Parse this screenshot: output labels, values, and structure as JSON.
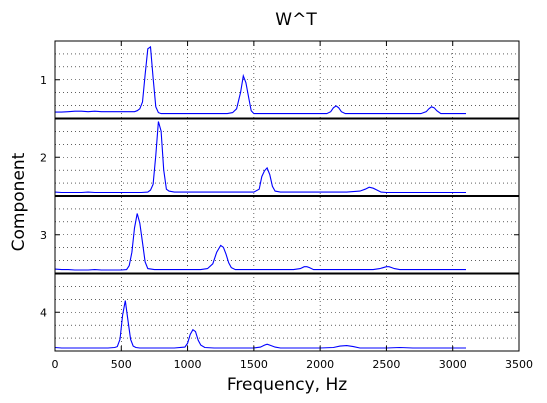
{
  "chart_data": {
    "type": "line",
    "title": "W^T",
    "xlabel": "Frequency, Hz",
    "ylabel": "Component",
    "xlim": [
      0,
      3500
    ],
    "xticks": [
      0,
      500,
      1000,
      1500,
      2000,
      2500,
      3000,
      3500
    ],
    "ylim": [
      4.5,
      0.5
    ],
    "yticks": [
      1,
      2,
      3,
      4
    ],
    "grid": true,
    "line_color": "#0000ff",
    "series": [
      {
        "x": [
          0,
          50,
          100,
          150,
          200,
          250,
          300,
          350,
          400,
          450,
          500,
          550,
          600,
          620,
          640,
          660,
          680,
          700,
          720,
          740,
          760,
          780,
          800,
          850,
          900,
          1000,
          1100,
          1200,
          1300,
          1340,
          1370,
          1400,
          1420,
          1440,
          1460,
          1480,
          1500,
          1550,
          1600,
          1700,
          1800,
          1900,
          2000,
          2050,
          2080,
          2100,
          2120,
          2140,
          2160,
          2190,
          2220,
          2300,
          2400,
          2500,
          2600,
          2700,
          2760,
          2800,
          2820,
          2840,
          2860,
          2880,
          2910,
          2950,
          3000,
          3050,
          3100
        ],
        "y": [
          0.45,
          0.45,
          0.5,
          0.55,
          0.55,
          0.5,
          0.55,
          0.5,
          0.5,
          0.5,
          0.5,
          0.5,
          0.5,
          0.6,
          0.8,
          1.5,
          4.3,
          7.0,
          7.2,
          4.0,
          1.0,
          0.4,
          0.3,
          0.3,
          0.3,
          0.3,
          0.3,
          0.3,
          0.3,
          0.4,
          0.8,
          2.5,
          4.2,
          3.5,
          2.0,
          0.6,
          0.3,
          0.3,
          0.3,
          0.3,
          0.3,
          0.3,
          0.3,
          0.3,
          0.5,
          0.9,
          1.1,
          0.9,
          0.5,
          0.3,
          0.3,
          0.3,
          0.3,
          0.3,
          0.3,
          0.3,
          0.3,
          0.5,
          0.8,
          1.0,
          0.9,
          0.6,
          0.3,
          0.3,
          0.3,
          0.3,
          0.3
        ]
      },
      {
        "x": [
          0,
          50,
          100,
          150,
          200,
          250,
          300,
          350,
          400,
          450,
          500,
          550,
          600,
          650,
          700,
          720,
          740,
          760,
          780,
          800,
          820,
          840,
          860,
          900,
          1000,
          1100,
          1200,
          1300,
          1400,
          1500,
          1540,
          1560,
          1580,
          1600,
          1620,
          1640,
          1660,
          1700,
          1800,
          1900,
          2000,
          2100,
          2200,
          2300,
          2340,
          2370,
          2400,
          2430,
          2460,
          2500,
          2600,
          2700,
          2800,
          2900,
          3000,
          3100
        ],
        "y": [
          0.2,
          0.15,
          0.15,
          0.15,
          0.15,
          0.2,
          0.15,
          0.15,
          0.15,
          0.15,
          0.15,
          0.15,
          0.15,
          0.15,
          0.2,
          0.4,
          1.0,
          4.0,
          7.5,
          6.5,
          2.5,
          0.5,
          0.3,
          0.2,
          0.2,
          0.2,
          0.2,
          0.2,
          0.2,
          0.2,
          0.5,
          1.8,
          2.4,
          2.7,
          2.0,
          0.8,
          0.3,
          0.2,
          0.2,
          0.2,
          0.2,
          0.2,
          0.2,
          0.3,
          0.5,
          0.7,
          0.6,
          0.4,
          0.2,
          0.15,
          0.15,
          0.15,
          0.15,
          0.15,
          0.15,
          0.15
        ]
      },
      {
        "x": [
          0,
          50,
          100,
          150,
          200,
          250,
          300,
          350,
          400,
          450,
          500,
          540,
          560,
          580,
          600,
          620,
          640,
          660,
          680,
          700,
          750,
          800,
          900,
          1000,
          1100,
          1150,
          1190,
          1220,
          1250,
          1270,
          1290,
          1310,
          1330,
          1360,
          1400,
          1500,
          1600,
          1700,
          1800,
          1850,
          1880,
          1900,
          1920,
          1950,
          2000,
          2100,
          2200,
          2300,
          2400,
          2450,
          2500,
          2520,
          2540,
          2560,
          2600,
          2700,
          2800,
          2900,
          3000,
          3100
        ],
        "y": [
          0.25,
          0.2,
          0.2,
          0.15,
          0.15,
          0.15,
          0.2,
          0.15,
          0.15,
          0.15,
          0.15,
          0.2,
          0.6,
          2.0,
          4.5,
          6.0,
          5.0,
          3.0,
          1.0,
          0.3,
          0.2,
          0.2,
          0.2,
          0.2,
          0.2,
          0.3,
          0.8,
          2.0,
          2.7,
          2.5,
          1.8,
          0.9,
          0.4,
          0.2,
          0.2,
          0.2,
          0.2,
          0.2,
          0.2,
          0.3,
          0.5,
          0.5,
          0.4,
          0.2,
          0.2,
          0.2,
          0.2,
          0.2,
          0.2,
          0.3,
          0.5,
          0.5,
          0.4,
          0.3,
          0.2,
          0.2,
          0.2,
          0.2,
          0.2,
          0.2
        ]
      },
      {
        "x": [
          0,
          50,
          100,
          150,
          200,
          250,
          300,
          350,
          400,
          450,
          470,
          490,
          510,
          530,
          550,
          570,
          590,
          610,
          640,
          700,
          800,
          900,
          980,
          1000,
          1020,
          1040,
          1060,
          1080,
          1100,
          1130,
          1200,
          1300,
          1400,
          1500,
          1550,
          1580,
          1600,
          1620,
          1660,
          1700,
          1800,
          1900,
          2000,
          2100,
          2150,
          2200,
          2250,
          2300,
          2400,
          2500,
          2600,
          2700,
          2800,
          2900,
          3000,
          3100
        ],
        "y": [
          0.15,
          0.1,
          0.1,
          0.1,
          0.1,
          0.1,
          0.1,
          0.1,
          0.1,
          0.15,
          0.25,
          1.0,
          3.5,
          5.0,
          3.0,
          1.0,
          0.3,
          0.15,
          0.1,
          0.1,
          0.1,
          0.1,
          0.2,
          0.6,
          1.5,
          2.0,
          1.8,
          0.9,
          0.4,
          0.15,
          0.1,
          0.1,
          0.1,
          0.1,
          0.2,
          0.4,
          0.5,
          0.4,
          0.2,
          0.1,
          0.1,
          0.1,
          0.1,
          0.15,
          0.3,
          0.35,
          0.25,
          0.1,
          0.1,
          0.1,
          0.15,
          0.1,
          0.1,
          0.1,
          0.1,
          0.1
        ]
      }
    ]
  }
}
